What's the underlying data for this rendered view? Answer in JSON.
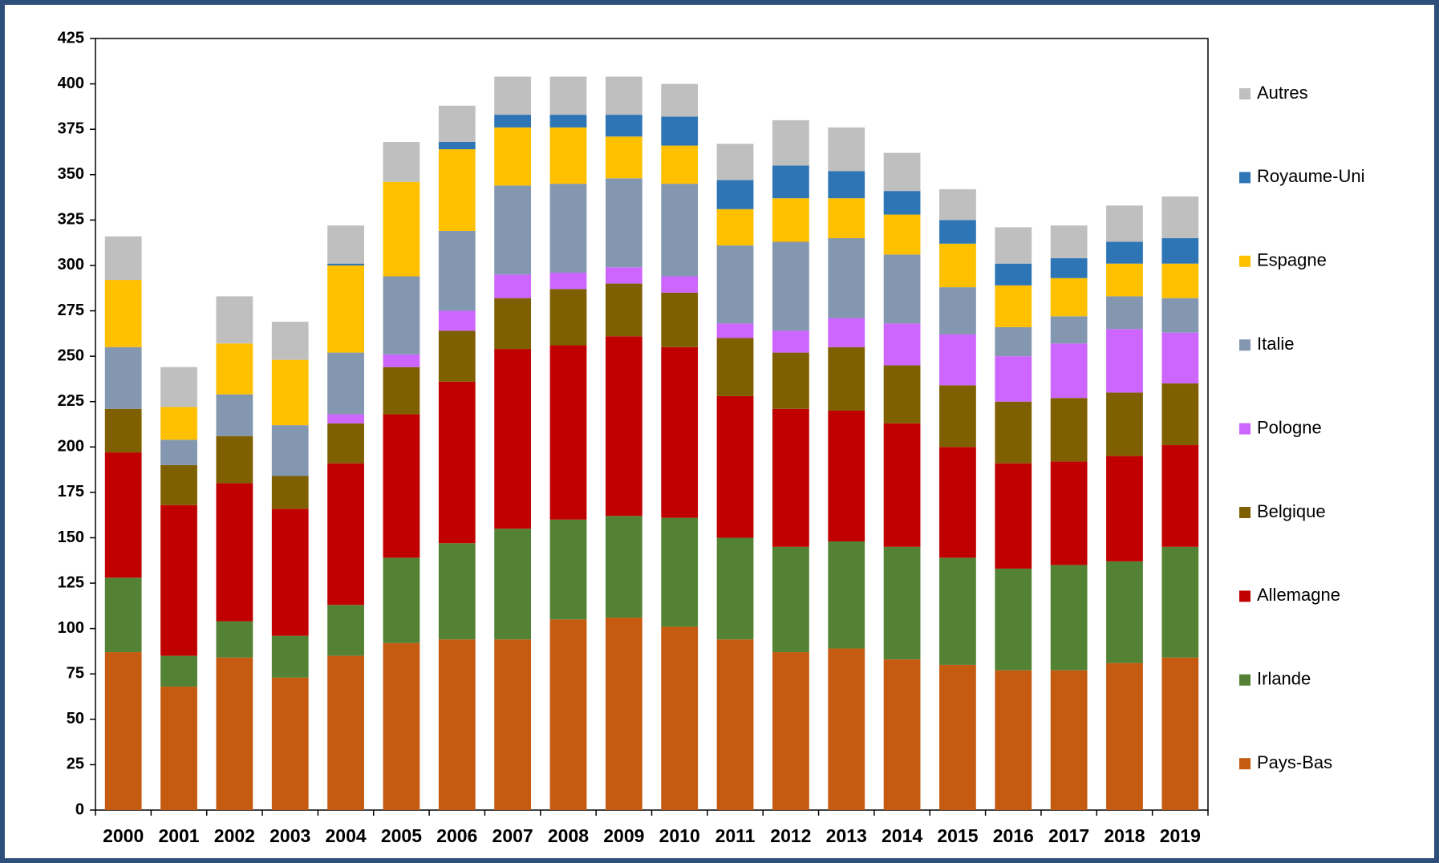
{
  "chart_data": {
    "type": "stacked_bar",
    "categories": [
      "2000",
      "2001",
      "2002",
      "2003",
      "2004",
      "2005",
      "2006",
      "2007",
      "2008",
      "2009",
      "2010",
      "2011",
      "2012",
      "2013",
      "2014",
      "2015",
      "2016",
      "2017",
      "2018",
      "2019"
    ],
    "series": [
      {
        "name": "Pays-Bas",
        "color": "#c55a11",
        "values": [
          87,
          68,
          84,
          73,
          85,
          92,
          94,
          94,
          105,
          106,
          101,
          94,
          87,
          89,
          83,
          80,
          77,
          77,
          81,
          84
        ]
      },
      {
        "name": "Irlande",
        "color": "#548235",
        "values": [
          41,
          17,
          20,
          23,
          28,
          47,
          53,
          61,
          55,
          56,
          60,
          56,
          58,
          59,
          62,
          59,
          56,
          58,
          56,
          61
        ]
      },
      {
        "name": "Allemagne",
        "color": "#c00000",
        "values": [
          69,
          83,
          76,
          70,
          78,
          79,
          89,
          99,
          96,
          99,
          94,
          78,
          76,
          72,
          68,
          61,
          58,
          57,
          58,
          56
        ]
      },
      {
        "name": "Belgique",
        "color": "#7f6000",
        "values": [
          24,
          22,
          26,
          18,
          22,
          26,
          28,
          28,
          31,
          29,
          30,
          32,
          31,
          35,
          32,
          34,
          34,
          35,
          35,
          34
        ]
      },
      {
        "name": "Pologne",
        "color": "#cc66ff",
        "values": [
          0,
          0,
          0,
          0,
          5,
          7,
          11,
          13,
          9,
          9,
          9,
          8,
          12,
          16,
          23,
          28,
          25,
          30,
          35,
          28
        ]
      },
      {
        "name": "Italie",
        "color": "#8497b0",
        "values": [
          34,
          14,
          23,
          28,
          34,
          43,
          44,
          49,
          49,
          49,
          51,
          43,
          49,
          44,
          38,
          26,
          16,
          15,
          18,
          19
        ]
      },
      {
        "name": "Espagne",
        "color": "#ffc000",
        "values": [
          37,
          18,
          28,
          36,
          48,
          52,
          45,
          32,
          31,
          23,
          21,
          20,
          24,
          22,
          22,
          24,
          23,
          21,
          18,
          19
        ]
      },
      {
        "name": "Royaume-Uni",
        "color": "#2e75b6",
        "values": [
          0,
          0,
          0,
          0,
          1,
          0,
          4,
          7,
          7,
          12,
          16,
          16,
          18,
          15,
          13,
          13,
          12,
          11,
          12,
          14
        ]
      },
      {
        "name": "Autres",
        "color": "#bfbfbf",
        "values": [
          24,
          22,
          26,
          21,
          21,
          22,
          20,
          21,
          21,
          21,
          18,
          20,
          25,
          24,
          21,
          17,
          20,
          18,
          20,
          23
        ]
      }
    ],
    "ylim": [
      0,
      425
    ],
    "yticks": [
      0,
      25,
      50,
      75,
      100,
      125,
      150,
      175,
      200,
      225,
      250,
      275,
      300,
      325,
      350,
      375,
      400,
      425
    ],
    "grid": false,
    "legend": "right"
  }
}
